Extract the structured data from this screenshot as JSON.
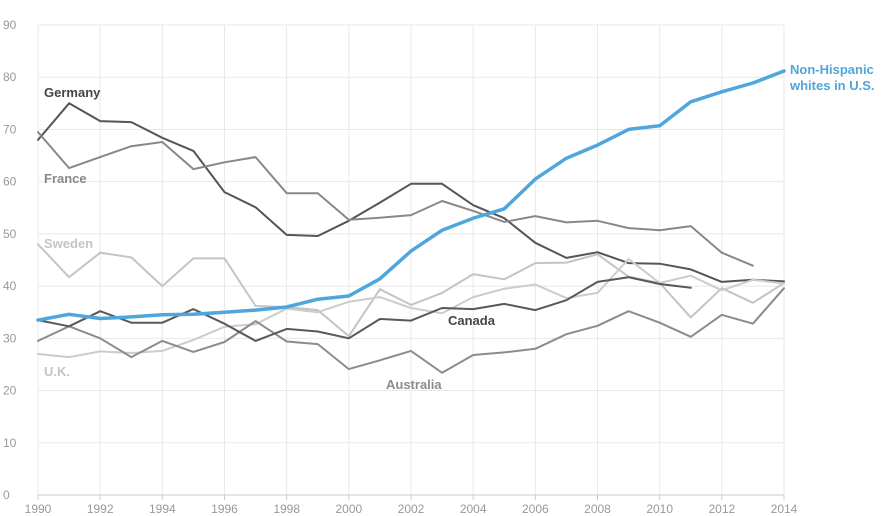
{
  "chart_data": {
    "type": "line",
    "title": "",
    "xlabel": "",
    "ylabel": "",
    "xlim": [
      1990,
      2014
    ],
    "ylim": [
      0,
      90
    ],
    "grid": true,
    "x_ticks": [
      "1990",
      "1992",
      "1994",
      "1996",
      "1998",
      "2000",
      "2002",
      "2004",
      "2006",
      "2008",
      "2010",
      "2012",
      "2014"
    ],
    "y_ticks": [
      "0",
      "10",
      "20",
      "30",
      "40",
      "50",
      "60",
      "70",
      "80",
      "90"
    ],
    "x": [
      1990,
      1991,
      1992,
      1993,
      1994,
      1995,
      1996,
      1997,
      1998,
      1999,
      2000,
      2001,
      2002,
      2003,
      2004,
      2005,
      2006,
      2007,
      2008,
      2009,
      2010,
      2011,
      2012,
      2013,
      2014
    ],
    "series": [
      {
        "name": "Germany",
        "label": "Germany",
        "color": "#555555",
        "width": 2,
        "values": [
          68,
          75,
          71.6,
          71.4,
          68.4,
          65.9,
          58,
          55.1,
          49.8,
          49.6,
          52.5,
          56,
          59.6,
          59.6,
          55.5,
          53,
          48.3,
          45.4,
          46.5,
          44.4,
          44.3,
          43.2,
          40.8,
          41.2,
          40.9
        ]
      },
      {
        "name": "France",
        "label": "France",
        "color": "#888888",
        "width": 2,
        "values": [
          69.5,
          62.6,
          64.7,
          66.8,
          67.6,
          62.4,
          63.7,
          64.7,
          57.8,
          57.8,
          52.7,
          53.1,
          53.6,
          56.3,
          54.4,
          52.3,
          53.4,
          52.2,
          52.5,
          51.1,
          50.7,
          51.5,
          46.4,
          43.9,
          null
        ]
      },
      {
        "name": "Sweden",
        "label": "Sweden",
        "color": "#c4c4c4",
        "width": 2,
        "values": [
          48,
          41.7,
          46.4,
          45.5,
          40,
          45.3,
          45.3,
          36.2,
          36,
          35.4,
          30.4,
          39.4,
          36.4,
          38.7,
          42.3,
          41.3,
          44.4,
          44.5,
          46.1,
          41.8,
          40.6,
          34,
          39.6,
          36.8,
          40.6
        ]
      },
      {
        "name": "U.K.",
        "label": "U.K.",
        "color": "#cccccc",
        "width": 2,
        "values": [
          27,
          26.4,
          27.5,
          27.2,
          27.6,
          29.7,
          32.2,
          32.7,
          35.7,
          35,
          37,
          37.9,
          35.8,
          34.8,
          37.9,
          39.5,
          40.3,
          37.7,
          38.7,
          45.2,
          40.6,
          42,
          39.2,
          41.2,
          40.5
        ]
      },
      {
        "name": "Australia",
        "label": "Australia",
        "color": "#8c8c8c",
        "width": 2,
        "values": [
          29.5,
          32.3,
          30,
          26.4,
          29.5,
          27.4,
          29.3,
          33.3,
          29.4,
          28.9,
          24.1,
          25.8,
          27.6,
          23.4,
          26.8,
          27.3,
          28,
          30.8,
          32.4,
          35.2,
          33,
          30.3,
          34.5,
          32.8,
          39.6
        ]
      },
      {
        "name": "Canada",
        "label": "Canada",
        "color": "#585858",
        "width": 2,
        "values": [
          33.5,
          32.3,
          35.2,
          33,
          33,
          35.6,
          32.8,
          29.5,
          31.8,
          31.3,
          30,
          33.7,
          33.4,
          35.8,
          35.6,
          36.6,
          35.4,
          37.3,
          40.8,
          41.7,
          40.4,
          39.7,
          null,
          null,
          null
        ]
      },
      {
        "name": "Non-Hispanic whites in U.S.",
        "label": [
          "Non-Hispanic",
          "whites in U.S."
        ],
        "color": "#4ea6dc",
        "width": 3.5,
        "values": [
          33.5,
          34.6,
          33.8,
          34.1,
          34.5,
          34.6,
          35,
          35.4,
          36,
          37.5,
          38.1,
          41.4,
          46.7,
          50.7,
          53,
          54.8,
          60.5,
          64.5,
          67,
          70,
          70.7,
          75.3,
          77.2,
          78.9,
          81.2
        ]
      }
    ]
  }
}
